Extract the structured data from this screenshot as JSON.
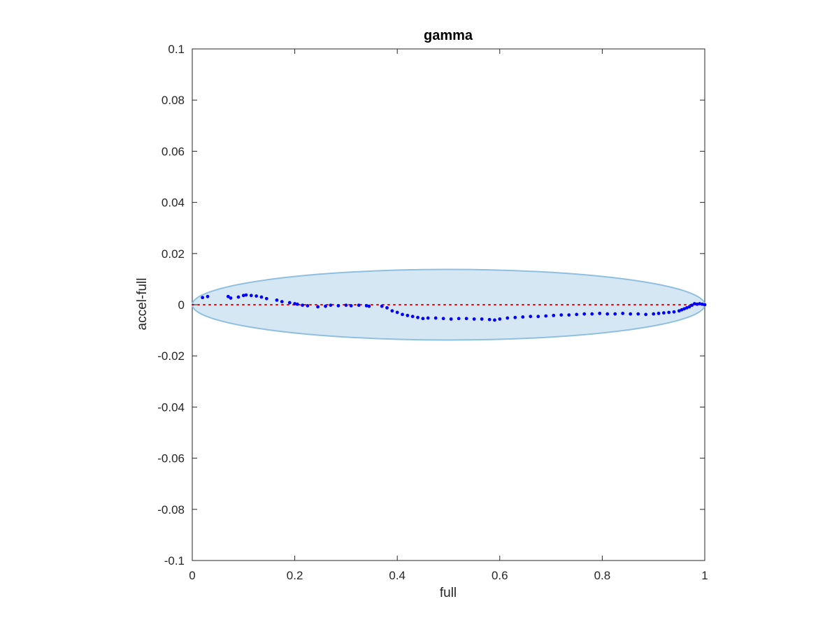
{
  "chart_data": {
    "type": "scatter",
    "title": "gamma",
    "xlabel": "full",
    "ylabel": "accel-full",
    "xlim": [
      0,
      1
    ],
    "ylim": [
      -0.1,
      0.1
    ],
    "xticks": [
      0,
      0.2,
      0.4,
      0.6,
      0.8,
      1
    ],
    "xtick_labels": [
      "0",
      "0.2",
      "0.4",
      "0.6",
      "0.8",
      "1"
    ],
    "yticks": [
      0.1,
      0.08,
      0.06,
      0.04,
      0.02,
      0,
      -0.02,
      -0.04,
      -0.06,
      -0.08,
      -0.1
    ],
    "ytick_labels": [
      "0.1",
      "0.08",
      "0.06",
      "0.04",
      "0.02",
      "0",
      "-0.02",
      "-0.04",
      "-0.06",
      "-0.08",
      "-0.1"
    ],
    "grid": false,
    "box": true,
    "colors": {
      "points": "#0000ff",
      "reference_line": "#ff0000",
      "ellipse_fill": "#d6e7f4",
      "ellipse_edge": "#8fbfe0"
    },
    "reference_line": {
      "y": 0,
      "x_range": [
        0,
        1
      ],
      "style": "dotted"
    },
    "ellipse": {
      "center": [
        0.5,
        0
      ],
      "x_radius": 0.5,
      "y_radius": 0.0138
    },
    "series": [
      {
        "x": [
          0.02,
          0.03,
          0.07,
          0.075,
          0.09,
          0.1,
          0.105,
          0.115,
          0.125,
          0.135,
          0.145,
          0.165,
          0.175,
          0.19,
          0.2,
          0.205,
          0.215,
          0.225,
          0.245,
          0.26,
          0.27,
          0.285,
          0.3,
          0.31,
          0.325,
          0.34,
          0.345,
          0.37,
          0.38,
          0.39,
          0.4,
          0.41,
          0.42,
          0.43,
          0.44,
          0.45,
          0.46,
          0.475,
          0.49,
          0.505,
          0.52,
          0.535,
          0.55,
          0.565,
          0.58,
          0.59,
          0.6,
          0.615,
          0.63,
          0.645,
          0.66,
          0.675,
          0.69,
          0.705,
          0.72,
          0.735,
          0.75,
          0.765,
          0.78,
          0.795,
          0.81,
          0.825,
          0.84,
          0.855,
          0.87,
          0.885,
          0.9,
          0.91,
          0.92,
          0.93,
          0.94,
          0.95,
          0.955,
          0.96,
          0.965,
          0.97,
          0.975,
          0.98,
          0.985,
          0.99,
          0.995,
          1.0
        ],
        "y": [
          0.0028,
          0.0032,
          0.0032,
          0.0026,
          0.003,
          0.0036,
          0.0038,
          0.0036,
          0.0034,
          0.003,
          0.0024,
          0.0018,
          0.0012,
          0.0008,
          0.0004,
          0.0002,
          -0.0002,
          -0.0004,
          -0.0008,
          -0.0006,
          -0.0002,
          -0.0004,
          -0.0002,
          -0.0004,
          -0.0002,
          -0.0004,
          -0.0006,
          -0.0006,
          -0.0012,
          -0.0024,
          -0.003,
          -0.0038,
          -0.0042,
          -0.0046,
          -0.005,
          -0.0054,
          -0.0052,
          -0.0052,
          -0.0054,
          -0.0056,
          -0.0054,
          -0.0054,
          -0.0056,
          -0.0056,
          -0.0058,
          -0.006,
          -0.0056,
          -0.0052,
          -0.005,
          -0.0048,
          -0.0046,
          -0.0046,
          -0.0044,
          -0.0042,
          -0.004,
          -0.004,
          -0.0038,
          -0.0036,
          -0.0036,
          -0.0034,
          -0.0036,
          -0.0036,
          -0.0034,
          -0.0036,
          -0.0036,
          -0.0038,
          -0.0036,
          -0.0034,
          -0.0032,
          -0.003,
          -0.0028,
          -0.0024,
          -0.002,
          -0.0016,
          -0.0012,
          -0.0008,
          -0.0002,
          0.0004,
          0.0002,
          0.0004,
          0.0002,
          0.0
        ]
      }
    ]
  }
}
